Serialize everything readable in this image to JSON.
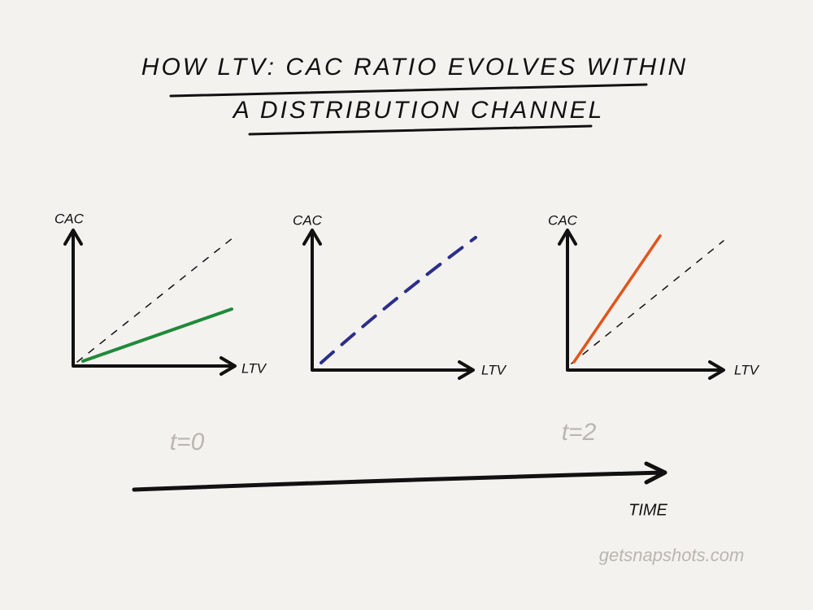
{
  "title": {
    "line1": "HOW LTV: CAC RATIO EVOLVES WITHIN",
    "line2": "A DISTRIBUTION CHANNEL"
  },
  "panels": [
    {
      "y_label": "CAC",
      "x_label": "LTV"
    },
    {
      "y_label": "CAC",
      "x_label": "LTV"
    },
    {
      "y_label": "CAC",
      "x_label": "LTV"
    }
  ],
  "timeline": {
    "start_label": "t=0",
    "end_label": "t=2",
    "axis_label": "TIME"
  },
  "watermark": "getsnapshots.com"
}
